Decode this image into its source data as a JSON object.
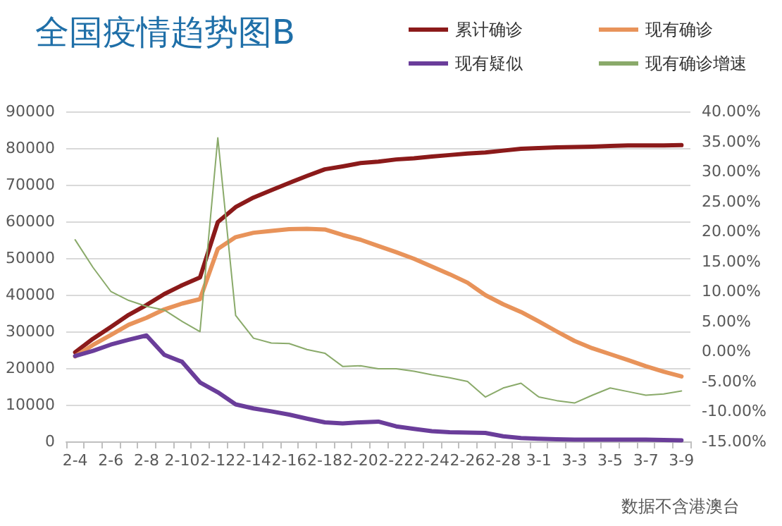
{
  "chart_data": {
    "type": "line",
    "title": "全国疫情趋势图B",
    "categories": [
      "2-4",
      null,
      "2-6",
      null,
      "2-8",
      null,
      "2-10",
      null,
      "2-12",
      null,
      "2-14",
      null,
      "2-16",
      null,
      "2-18",
      null,
      "2-20",
      null,
      "2-22",
      null,
      "2-24",
      null,
      "2-26",
      null,
      "2-28",
      null,
      "3-1",
      null,
      "3-3",
      null,
      "3-5",
      null,
      "3-7",
      null,
      "3-9"
    ],
    "series": [
      {
        "name": "累计确诊",
        "color": "#8b1a1a",
        "values": [
          24300,
          28000,
          31200,
          34500,
          37200,
          40200,
          42600,
          44700,
          59800,
          63900,
          66500,
          68500,
          70500,
          72400,
          74200,
          75000,
          75900,
          76300,
          76900,
          77200,
          77700,
          78100,
          78500,
          78800,
          79300,
          79800,
          80000,
          80200,
          80300,
          80400,
          80600,
          80700,
          80700,
          80700,
          80800
        ]
      },
      {
        "name": "现有确诊",
        "color": "#e8935a",
        "values": [
          23200,
          26300,
          29000,
          31800,
          33700,
          36000,
          37600,
          38800,
          52500,
          55700,
          56900,
          57400,
          57900,
          58000,
          57800,
          56300,
          55000,
          53300,
          51600,
          49800,
          47700,
          45600,
          43300,
          39900,
          37400,
          35300,
          32700,
          30000,
          27400,
          25400,
          23800,
          22200,
          20500,
          19000,
          17700
        ]
      },
      {
        "name": "现有疑似",
        "color": "#6a3d9a",
        "values": [
          23300,
          24700,
          26400,
          27700,
          28900,
          23600,
          21700,
          16100,
          13400,
          10100,
          9000,
          8200,
          7300,
          6200,
          5200,
          4900,
          5200,
          5400,
          4100,
          3400,
          2800,
          2500,
          2400,
          2300,
          1400,
          900,
          700,
          600,
          500,
          500,
          500,
          500,
          500,
          400,
          300
        ]
      },
      {
        "name": "现有确诊增速",
        "color": "#8aaa6a",
        "axis": "y2",
        "values": [
          18.6,
          14.0,
          10.0,
          8.5,
          7.5,
          6.9,
          5.0,
          3.3,
          35.6,
          6.0,
          2.2,
          1.4,
          1.3,
          0.3,
          -0.3,
          -2.5,
          -2.4,
          -2.9,
          -2.9,
          -3.3,
          -3.9,
          -4.4,
          -5.0,
          -7.6,
          -6.1,
          -5.3,
          -7.6,
          -8.2,
          -8.6,
          -7.3,
          -6.1,
          -6.7,
          -7.3,
          -7.1,
          -6.6
        ]
      }
    ],
    "ylim": [
      0,
      90000
    ],
    "yticks": [
      0,
      10000,
      20000,
      30000,
      40000,
      50000,
      60000,
      70000,
      80000,
      90000
    ],
    "y2lim": [
      -15,
      40
    ],
    "y2ticks": [
      {
        "value": -15,
        "label": "-15.00%"
      },
      {
        "value": -10,
        "label": "-10.00%"
      },
      {
        "value": -5,
        "label": "-5.00%"
      },
      {
        "value": 0,
        "label": "0.00%"
      },
      {
        "value": 5,
        "label": "5.00%"
      },
      {
        "value": 10,
        "label": "10.00%"
      },
      {
        "value": 15,
        "label": "15.00%"
      },
      {
        "value": 20,
        "label": "20.00%"
      },
      {
        "value": 25,
        "label": "25.00%"
      },
      {
        "value": 30,
        "label": "30.00%"
      },
      {
        "value": 35,
        "label": "35.00%"
      },
      {
        "value": 40,
        "label": "40.00%"
      }
    ],
    "grid": "y",
    "legend": "top right",
    "marker": "none",
    "line_style": "solid",
    "annotations": [
      "数据不含港澳台"
    ]
  }
}
